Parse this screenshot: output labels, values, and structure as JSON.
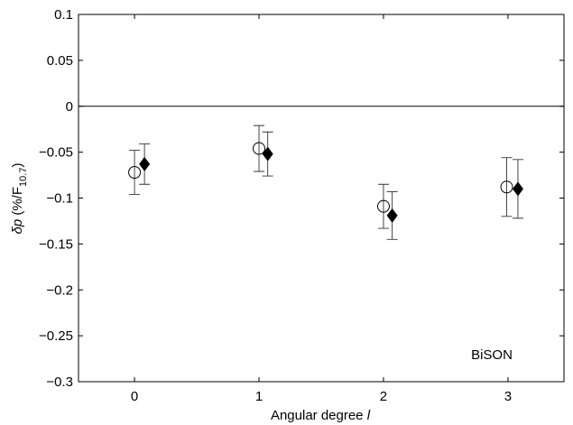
{
  "chart_data": {
    "type": "scatter",
    "xlabel": {
      "text": "Angular degree",
      "symbol": "l"
    },
    "ylabel": {
      "symbol": "δp",
      "text": "(%/F",
      "subscript": "10.7",
      "close": ")"
    },
    "annotation": "BiSON",
    "xlim": [
      -0.45,
      3.45
    ],
    "xticks": [
      0,
      1,
      2,
      3
    ],
    "ylim": [
      -0.3,
      0.1
    ],
    "yticks": [
      {
        "value": -0.3,
        "label": "−0.3"
      },
      {
        "value": -0.25,
        "label": "−0.25"
      },
      {
        "value": -0.2,
        "label": "−0.2"
      },
      {
        "value": -0.15,
        "label": "−0.15"
      },
      {
        "value": -0.1,
        "label": "−0.1"
      },
      {
        "value": -0.05,
        "label": "−0.05"
      },
      0,
      0.05,
      0.1
    ],
    "zero_line": true,
    "series": [
      {
        "marker": "circle",
        "color": "#000000",
        "x": [
          0,
          1,
          2,
          2.99
        ],
        "values": [
          -0.072,
          -0.046,
          -0.109,
          -0.088
        ],
        "errors": [
          0.024,
          0.025,
          0.024,
          0.032
        ]
      },
      {
        "marker": "diamond",
        "color": "#000000",
        "x": [
          0.08,
          1.07,
          2.07,
          3.08
        ],
        "values": [
          -0.063,
          -0.052,
          -0.119,
          -0.09
        ],
        "errors": [
          0.022,
          0.024,
          0.026,
          0.032
        ]
      }
    ]
  }
}
